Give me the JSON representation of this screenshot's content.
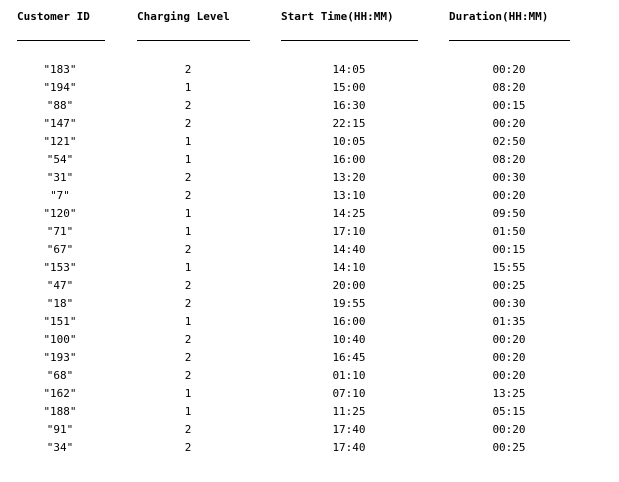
{
  "table": {
    "headers": [
      "Customer ID",
      "Charging Level",
      "Start Time(HH:MM)",
      "Duration(HH:MM)"
    ],
    "rows": [
      [
        "\"183\"",
        "2",
        "14:05",
        "00:20"
      ],
      [
        "\"194\"",
        "1",
        "15:00",
        "08:20"
      ],
      [
        "\"88\"",
        "2",
        "16:30",
        "00:15"
      ],
      [
        "\"147\"",
        "2",
        "22:15",
        "00:20"
      ],
      [
        "\"121\"",
        "1",
        "10:05",
        "02:50"
      ],
      [
        "\"54\"",
        "1",
        "16:00",
        "08:20"
      ],
      [
        "\"31\"",
        "2",
        "13:20",
        "00:30"
      ],
      [
        "\"7\"",
        "2",
        "13:10",
        "00:20"
      ],
      [
        "\"120\"",
        "1",
        "14:25",
        "09:50"
      ],
      [
        "\"71\"",
        "1",
        "17:10",
        "01:50"
      ],
      [
        "\"67\"",
        "2",
        "14:40",
        "00:15"
      ],
      [
        "\"153\"",
        "1",
        "14:10",
        "15:55"
      ],
      [
        "\"47\"",
        "2",
        "20:00",
        "00:25"
      ],
      [
        "\"18\"",
        "2",
        "19:55",
        "00:30"
      ],
      [
        "\"151\"",
        "1",
        "16:00",
        "01:35"
      ],
      [
        "\"100\"",
        "2",
        "10:40",
        "00:20"
      ],
      [
        "\"193\"",
        "2",
        "16:45",
        "00:20"
      ],
      [
        "\"68\"",
        "2",
        "01:10",
        "00:20"
      ],
      [
        "\"162\"",
        "1",
        "07:10",
        "13:25"
      ],
      [
        "\"188\"",
        "1",
        "11:25",
        "05:15"
      ],
      [
        "\"91\"",
        "2",
        "17:40",
        "00:20"
      ],
      [
        "\"34\"",
        "2",
        "17:40",
        "00:25"
      ]
    ]
  }
}
